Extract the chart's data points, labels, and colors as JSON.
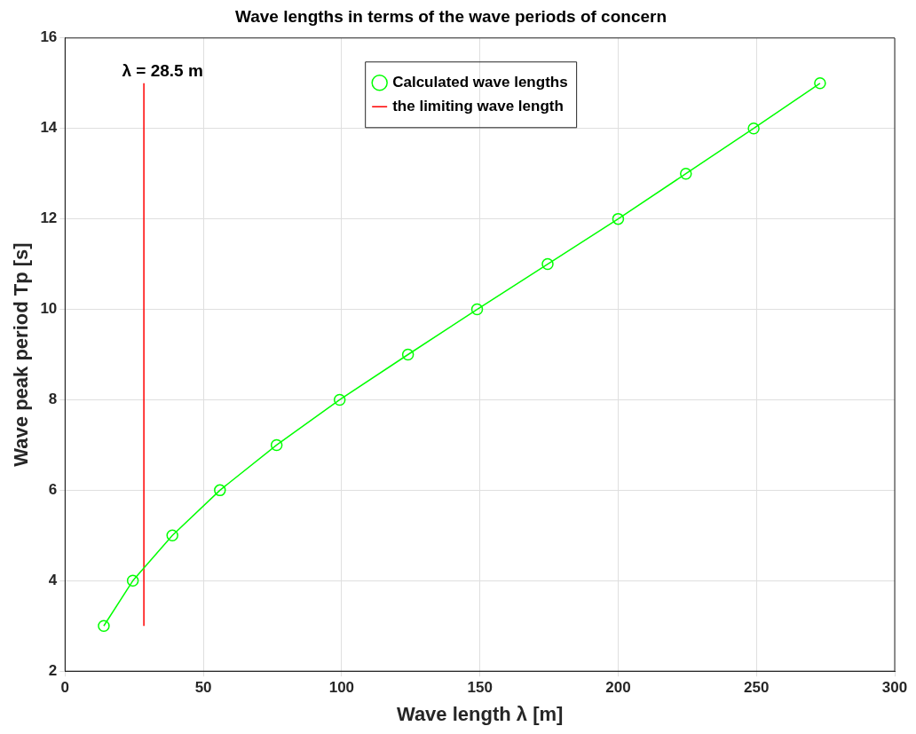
{
  "chart_data": {
    "type": "line",
    "title": "Wave lengths in terms of the wave periods of concern",
    "xlabel": "Wave length λ [m]",
    "ylabel": "Wave peak period Tp [s]",
    "series": [
      {
        "name": "Calculated wave lengths",
        "color": "#00ff00",
        "marker": "circle",
        "x": [
          14,
          24.5,
          38.8,
          56,
          76.5,
          99.3,
          124,
          149,
          174.5,
          200,
          224.5,
          249,
          273
        ],
        "values": [
          3,
          4,
          5,
          6,
          7,
          8,
          9,
          10,
          11,
          12,
          13,
          14,
          15
        ]
      },
      {
        "name": "the limiting wave length",
        "color": "#ff0000",
        "marker": "none",
        "x": [
          28.5,
          28.5
        ],
        "values": [
          3,
          15
        ]
      }
    ],
    "annotations": [
      {
        "text": "λ = 28.5 m",
        "x": 28.5,
        "y": 15
      }
    ],
    "xlim": [
      0,
      300
    ],
    "xticks": [
      0,
      50,
      100,
      150,
      200,
      250,
      300
    ],
    "ylim": [
      2,
      16
    ],
    "yticks": [
      2,
      4,
      6,
      8,
      10,
      12,
      14,
      16
    ],
    "grid": true,
    "legend": "top",
    "line_style": "solid"
  }
}
